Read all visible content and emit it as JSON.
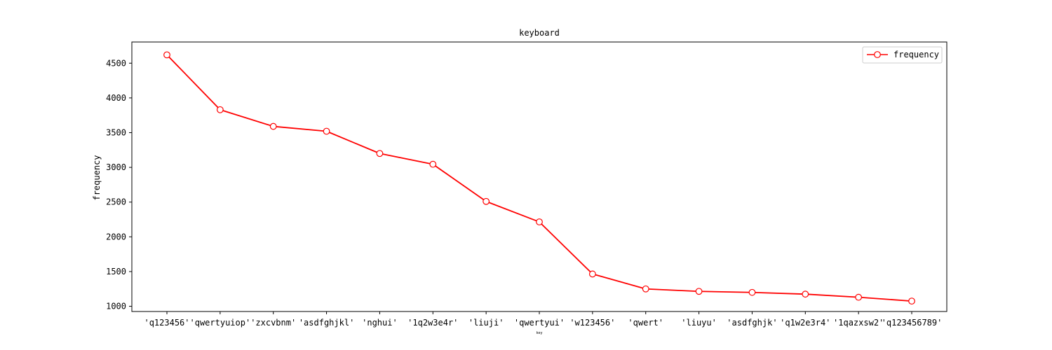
{
  "chart_data": {
    "type": "line",
    "title": "keyboard",
    "xlabel": "key",
    "ylabel": "frequency",
    "categories": [
      "'q123456'",
      "'qwertyuiop'",
      "'zxcvbnm'",
      "'asdfghjkl'",
      "'nghui'",
      "'1q2w3e4r'",
      "'liuji'",
      "'qwertyui'",
      "'w123456'",
      "'qwert'",
      "'liuyu'",
      "'asdfghjk'",
      "'q1w2e3r4'",
      "'1qazxsw2'",
      "'q123456789'"
    ],
    "series": [
      {
        "name": "frequency",
        "color": "#ff0000",
        "marker": "open-circle",
        "values": [
          4620,
          3830,
          3590,
          3520,
          3200,
          3045,
          2510,
          2215,
          1465,
          1250,
          1215,
          1200,
          1175,
          1130,
          1075
        ]
      }
    ],
    "ylim": [
      925,
      4805
    ],
    "yticks": [
      1000,
      1500,
      2000,
      2500,
      3000,
      3500,
      4000,
      4500
    ],
    "grid": false,
    "legend_position": "top-right"
  }
}
